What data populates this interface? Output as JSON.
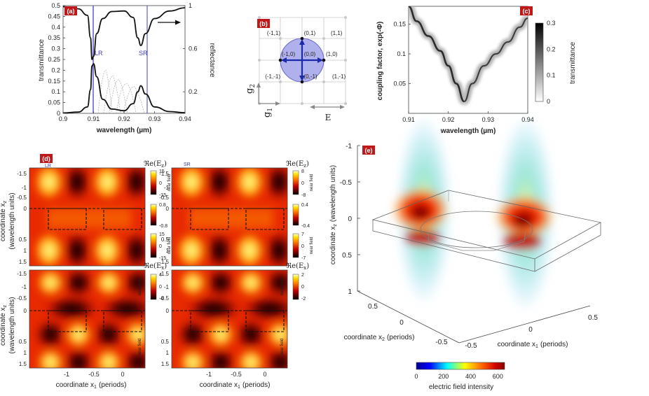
{
  "colors": {
    "accent_red": "#c01818",
    "lr_line": "#5050c8",
    "sr_line": "#5050c8",
    "sphere": "#8888e0",
    "arrow": "#1a2aa8"
  },
  "panel_a": {
    "label": "(a)",
    "chart_data": {
      "type": "line",
      "title": "",
      "xlabel": "wavelength (µm)",
      "ylabel_left": "transmittance",
      "ylabel_right": "reflectance",
      "xlim": [
        0.9,
        0.94
      ],
      "ylim_left": [
        0,
        0.5
      ],
      "ylim_right": [
        0,
        1
      ],
      "xticks": [
        "0.9",
        "0.91",
        "0.92",
        "0.93",
        "0.94"
      ],
      "yticks_left": [
        "0",
        "0.05",
        "0.1",
        "0.15",
        "0.2",
        "0.25",
        "0.3",
        "0.35",
        "0.4",
        "0.45",
        "0.5"
      ],
      "yticks_right": [
        "0.2",
        "0.6",
        "1"
      ],
      "annotations": [
        "LR",
        "SR"
      ],
      "resonances_um": {
        "LR": 0.9095,
        "SR": 0.9255
      },
      "series": [
        {
          "name": "transmittance",
          "axis": "left",
          "x": [
            0.9,
            0.905,
            0.908,
            0.909,
            0.9095,
            0.91,
            0.911,
            0.913,
            0.916,
            0.92,
            0.923,
            0.9245,
            0.9255,
            0.927,
            0.93,
            0.935,
            0.94
          ],
          "values": [
            0.002,
            0.006,
            0.03,
            0.11,
            0.22,
            0.23,
            0.17,
            0.065,
            0.02,
            0.012,
            0.045,
            0.1,
            0.128,
            0.09,
            0.03,
            0.008,
            0.003
          ]
        },
        {
          "name": "reflectance",
          "axis": "right",
          "x": [
            0.9,
            0.905,
            0.908,
            0.909,
            0.9095,
            0.91,
            0.911,
            0.913,
            0.916,
            0.92,
            0.923,
            0.9245,
            0.9255,
            0.927,
            0.93,
            0.935,
            0.94
          ],
          "values": [
            0.99,
            0.97,
            0.91,
            0.7,
            0.5,
            0.53,
            0.74,
            0.88,
            0.945,
            0.95,
            0.89,
            0.7,
            0.63,
            0.74,
            0.88,
            0.95,
            0.98
          ]
        }
      ]
    }
  },
  "panel_b": {
    "label": "(b)",
    "lattice_labels": [
      "(-1,1)",
      "(0,1)",
      "(1,1)",
      "(-1,0)",
      "(0,0)",
      "(1,0)",
      "(-1,-1)",
      "(0,-1)",
      "(1,-1)"
    ],
    "g2": "g",
    "g2_sub": "2",
    "g1": "g",
    "g1_sub": "1",
    "e_label": "E"
  },
  "panel_c": {
    "label": "(c)",
    "chart_data": {
      "type": "heatmap",
      "xlabel": "wavelength (µm)",
      "ylabel": "coupling factor, exp(-Φ)",
      "xlim": [
        0.91,
        0.94
      ],
      "ylim": [
        0,
        0.18
      ],
      "xticks": [
        "0.91",
        "0.92",
        "0.93",
        "0.94"
      ],
      "yticks": [
        "0.05",
        "0.1",
        "0.15"
      ],
      "colorbar_label": "transmittance",
      "colorbar_ticks": [
        "0.3",
        "0.2",
        "0.1",
        "0"
      ],
      "colorbar_range": [
        0,
        0.3
      ],
      "branch_vertex": [
        0.924,
        0.02
      ],
      "lr_branch": {
        "x": [
          0.924,
          0.922,
          0.92,
          0.918,
          0.915,
          0.912,
          0.91
        ],
        "y": [
          0.02,
          0.05,
          0.08,
          0.105,
          0.13,
          0.155,
          0.18
        ]
      },
      "sr_branch": {
        "x": [
          0.924,
          0.926,
          0.929,
          0.932,
          0.935,
          0.938,
          0.94
        ],
        "y": [
          0.02,
          0.05,
          0.08,
          0.1,
          0.12,
          0.145,
          0.16
        ]
      }
    }
  },
  "panel_d": {
    "label": "(d)",
    "lr_tag": "LR",
    "sr_tag": "SR",
    "ylabel_line1": "coordinate x",
    "ylabel_sub": "z",
    "ylabel_line2": "(wavelength units)",
    "xlabel": "coordinate x",
    "xlabel_sub": "1",
    "xlabel_suffix": "(periods)",
    "yticks_top": [
      "-1.5",
      "-1",
      "-0.5",
      "0"
    ],
    "yticks_bottom": [
      "0.5",
      "1",
      "1.5"
    ],
    "xticks": [
      "-1",
      "-0.5",
      "0"
    ],
    "near_field": "near field",
    "maps": [
      {
        "title": "ℜe(E",
        "title_sub": "z",
        "title_end": ")",
        "cb_top": [
          "15",
          "0",
          "-15"
        ],
        "cb_bot": [
          "15",
          "0",
          "-15"
        ]
      },
      {
        "title": "ℜe(E",
        "title_sub": "z",
        "title_end": ")",
        "cb_top": [
          "8",
          "0",
          "-8"
        ],
        "cb_bot": [
          "7",
          "0",
          "-7"
        ]
      },
      {
        "title": "ℜe(E",
        "title_sub": "x",
        "title_end": ")",
        "cb_top": [
          "4",
          "0",
          "-4"
        ],
        "cb_bot": []
      },
      {
        "title": "ℜe(E",
        "title_sub": "x",
        "title_end": ")",
        "cb_top": [
          "2",
          "0",
          "-2"
        ],
        "cb_bot": []
      }
    ],
    "cb_mid_a": [
      "0.8",
      "-0.8"
    ],
    "cb_mid_b": [
      "0.4",
      "-0.4"
    ]
  },
  "panel_e": {
    "label": "(e)",
    "zlabel": "coordinate x",
    "zlabel_sub": "z",
    "zlabel_suffix": "(wavelength units)",
    "zticks": [
      "-1",
      "-0.5",
      "0",
      "0.5",
      "1"
    ],
    "xlabel_left": "coordinate x",
    "xlabel_left_sub": "2",
    "xlabel_left_suffix": "(periods)",
    "xticks_left": [
      "0.5",
      "0",
      "-0.5"
    ],
    "xlabel_right": "coordinate x",
    "xlabel_right_sub": "1",
    "xlabel_right_suffix": "(periods)",
    "xticks_right": [
      "-0.5",
      "0",
      "0.5"
    ],
    "colorbar_label": "electric field intensity",
    "colorbar_ticks": [
      "0",
      "200",
      "400",
      "600"
    ],
    "colorbar_range": [
      0,
      650
    ]
  }
}
